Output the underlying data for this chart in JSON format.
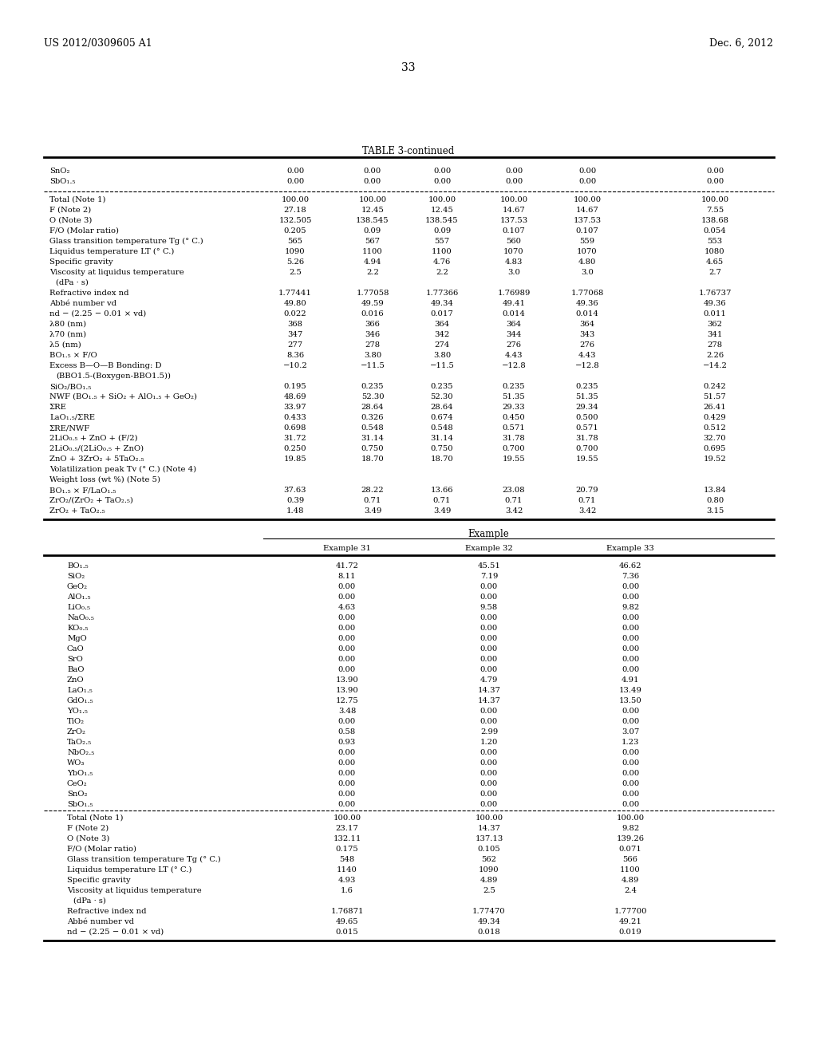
{
  "header_left": "US 2012/0309605 A1",
  "header_right": "Dec. 6, 2012",
  "page_number": "33",
  "table_title": "TABLE 3-continued",
  "background_color": "#ffffff",
  "text_color": "#000000",
  "font_size": 7.2,
  "table1": {
    "rows": [
      [
        "SnO₂",
        "0.00",
        "0.00",
        "0.00",
        "0.00",
        "0.00",
        "0.00"
      ],
      [
        "SbO₁.₅",
        "0.00",
        "0.00",
        "0.00",
        "0.00",
        "0.00",
        "0.00"
      ],
      [
        "Total (Note 1)",
        "100.00",
        "100.00",
        "100.00",
        "100.00",
        "100.00",
        "100.00"
      ],
      [
        "F (Note 2)",
        "27.18",
        "12.45",
        "12.45",
        "14.67",
        "14.67",
        "7.55"
      ],
      [
        "O (Note 3)",
        "132.505",
        "138.545",
        "138.545",
        "137.53",
        "137.53",
        "138.68"
      ],
      [
        "F/O (Molar ratio)",
        "0.205",
        "0.09",
        "0.09",
        "0.107",
        "0.107",
        "0.054"
      ],
      [
        "Glass transition temperature Tg (° C.)",
        "565",
        "567",
        "557",
        "560",
        "559",
        "553"
      ],
      [
        "Liquidus temperature LT (° C.)",
        "1090",
        "1100",
        "1100",
        "1070",
        "1070",
        "1080"
      ],
      [
        "Specific gravity",
        "5.26",
        "4.94",
        "4.76",
        "4.83",
        "4.80",
        "4.65"
      ],
      [
        "Viscosity at liquidus temperature",
        "2.5",
        "2.2",
        "2.2",
        "3.0",
        "3.0",
        "2.7"
      ],
      [
        "(dPa · s)",
        "",
        "",
        "",
        "",
        "",
        ""
      ],
      [
        "Refractive index nd",
        "1.77441",
        "1.77058",
        "1.77366",
        "1.76989",
        "1.77068",
        "1.76737"
      ],
      [
        "Abbé number vd",
        "49.80",
        "49.59",
        "49.34",
        "49.41",
        "49.36",
        "49.36"
      ],
      [
        "nd − (2.25 − 0.01 × vd)",
        "0.022",
        "0.016",
        "0.017",
        "0.014",
        "0.014",
        "0.011"
      ],
      [
        "λ80 (nm)",
        "368",
        "366",
        "364",
        "364",
        "364",
        "362"
      ],
      [
        "λ70 (nm)",
        "347",
        "346",
        "342",
        "344",
        "343",
        "341"
      ],
      [
        "λ5 (nm)",
        "277",
        "278",
        "274",
        "276",
        "276",
        "278"
      ],
      [
        "BO₁.₅ × F/O",
        "8.36",
        "3.80",
        "3.80",
        "4.43",
        "4.43",
        "2.26"
      ],
      [
        "Excess B—O—B Bonding: D",
        "−10.2",
        "−11.5",
        "−11.5",
        "−12.8",
        "−12.8",
        "−14.2"
      ],
      [
        "(BBO1.5-(Boxygen-BBO1.5))",
        "",
        "",
        "",
        "",
        "",
        ""
      ],
      [
        "SiO₂/BO₁.₅",
        "0.195",
        "0.235",
        "0.235",
        "0.235",
        "0.235",
        "0.242"
      ],
      [
        "NWF (BO₁.₅ + SiO₂ + AlO₁.₅ + GeO₂)",
        "48.69",
        "52.30",
        "52.30",
        "51.35",
        "51.35",
        "51.57"
      ],
      [
        "ΣRE",
        "33.97",
        "28.64",
        "28.64",
        "29.33",
        "29.34",
        "26.41"
      ],
      [
        "LaO₁.₅/ΣRE",
        "0.433",
        "0.326",
        "0.674",
        "0.450",
        "0.500",
        "0.429"
      ],
      [
        "ΣRE/NWF",
        "0.698",
        "0.548",
        "0.548",
        "0.571",
        "0.571",
        "0.512"
      ],
      [
        "2LiO₀.₅ + ZnO + (F/2)",
        "31.72",
        "31.14",
        "31.14",
        "31.78",
        "31.78",
        "32.70"
      ],
      [
        "2LiO₀.₅/(2LiO₀.₅ + ZnO)",
        "0.250",
        "0.750",
        "0.750",
        "0.700",
        "0.700",
        "0.695"
      ],
      [
        "ZnO + 3ZrO₂ + 5TaO₂.₅",
        "19.85",
        "18.70",
        "18.70",
        "19.55",
        "19.55",
        "19.52"
      ],
      [
        "Volatilization peak Tv (° C.) (Note 4)",
        "",
        "",
        "",
        "",
        "",
        ""
      ],
      [
        "Weight loss (wt %) (Note 5)",
        "",
        "",
        "",
        "",
        "",
        ""
      ],
      [
        "BO₁.₅ × F/LaO₁.₅",
        "37.63",
        "28.22",
        "13.66",
        "23.08",
        "20.79",
        "13.84"
      ],
      [
        "ZrO₂/(ZrO₂ + TaO₂.₅)",
        "0.39",
        "0.71",
        "0.71",
        "0.71",
        "0.71",
        "0.80"
      ],
      [
        "ZrO₂ + TaO₂.₅",
        "1.48",
        "3.49",
        "3.49",
        "3.42",
        "3.42",
        "3.15"
      ]
    ]
  },
  "table2": {
    "example_header": "Example",
    "col_labels": [
      "Example 31",
      "Example 32",
      "Example 33"
    ],
    "rows": [
      [
        "BO₁.₅",
        "41.72",
        "45.51",
        "46.62"
      ],
      [
        "SiO₂",
        "8.11",
        "7.19",
        "7.36"
      ],
      [
        "GeO₂",
        "0.00",
        "0.00",
        "0.00"
      ],
      [
        "AlO₁.₅",
        "0.00",
        "0.00",
        "0.00"
      ],
      [
        "LiO₀.₅",
        "4.63",
        "9.58",
        "9.82"
      ],
      [
        "NaO₀.₅",
        "0.00",
        "0.00",
        "0.00"
      ],
      [
        "KO₀.₅",
        "0.00",
        "0.00",
        "0.00"
      ],
      [
        "MgO",
        "0.00",
        "0.00",
        "0.00"
      ],
      [
        "CaO",
        "0.00",
        "0.00",
        "0.00"
      ],
      [
        "SrO",
        "0.00",
        "0.00",
        "0.00"
      ],
      [
        "BaO",
        "0.00",
        "0.00",
        "0.00"
      ],
      [
        "ZnO",
        "13.90",
        "4.79",
        "4.91"
      ],
      [
        "LaO₁.₅",
        "13.90",
        "14.37",
        "13.49"
      ],
      [
        "GdO₁.₅",
        "12.75",
        "14.37",
        "13.50"
      ],
      [
        "YO₁.₅",
        "3.48",
        "0.00",
        "0.00"
      ],
      [
        "TiO₂",
        "0.00",
        "0.00",
        "0.00"
      ],
      [
        "ZrO₂",
        "0.58",
        "2.99",
        "3.07"
      ],
      [
        "TaO₂.₅",
        "0.93",
        "1.20",
        "1.23"
      ],
      [
        "NbO₂.₅",
        "0.00",
        "0.00",
        "0.00"
      ],
      [
        "WO₃",
        "0.00",
        "0.00",
        "0.00"
      ],
      [
        "YbO₁.₅",
        "0.00",
        "0.00",
        "0.00"
      ],
      [
        "CeO₂",
        "0.00",
        "0.00",
        "0.00"
      ],
      [
        "SnO₂",
        "0.00",
        "0.00",
        "0.00"
      ],
      [
        "SbO₁.₅",
        "0.00",
        "0.00",
        "0.00"
      ],
      [
        "Total (Note 1)",
        "100.00",
        "100.00",
        "100.00"
      ],
      [
        "F (Note 2)",
        "23.17",
        "14.37",
        "9.82"
      ],
      [
        "O (Note 3)",
        "132.11",
        "137.13",
        "139.26"
      ],
      [
        "F/O (Molar ratio)",
        "0.175",
        "0.105",
        "0.071"
      ],
      [
        "Glass transition temperature Tg (° C.)",
        "548",
        "562",
        "566"
      ],
      [
        "Liquidus temperature LT (° C.)",
        "1140",
        "1090",
        "1100"
      ],
      [
        "Specific gravity",
        "4.93",
        "4.89",
        "4.89"
      ],
      [
        "Viscosity at liquidus temperature",
        "1.6",
        "2.5",
        "2.4"
      ],
      [
        "(dPa · s)",
        "",
        "",
        ""
      ],
      [
        "Refractive index nd",
        "1.76871",
        "1.77470",
        "1.77700"
      ],
      [
        "Abbé number vd",
        "49.65",
        "49.34",
        "49.21"
      ],
      [
        "nd − (2.25 − 0.01 × vd)",
        "0.015",
        "0.018",
        "0.019"
      ]
    ]
  }
}
